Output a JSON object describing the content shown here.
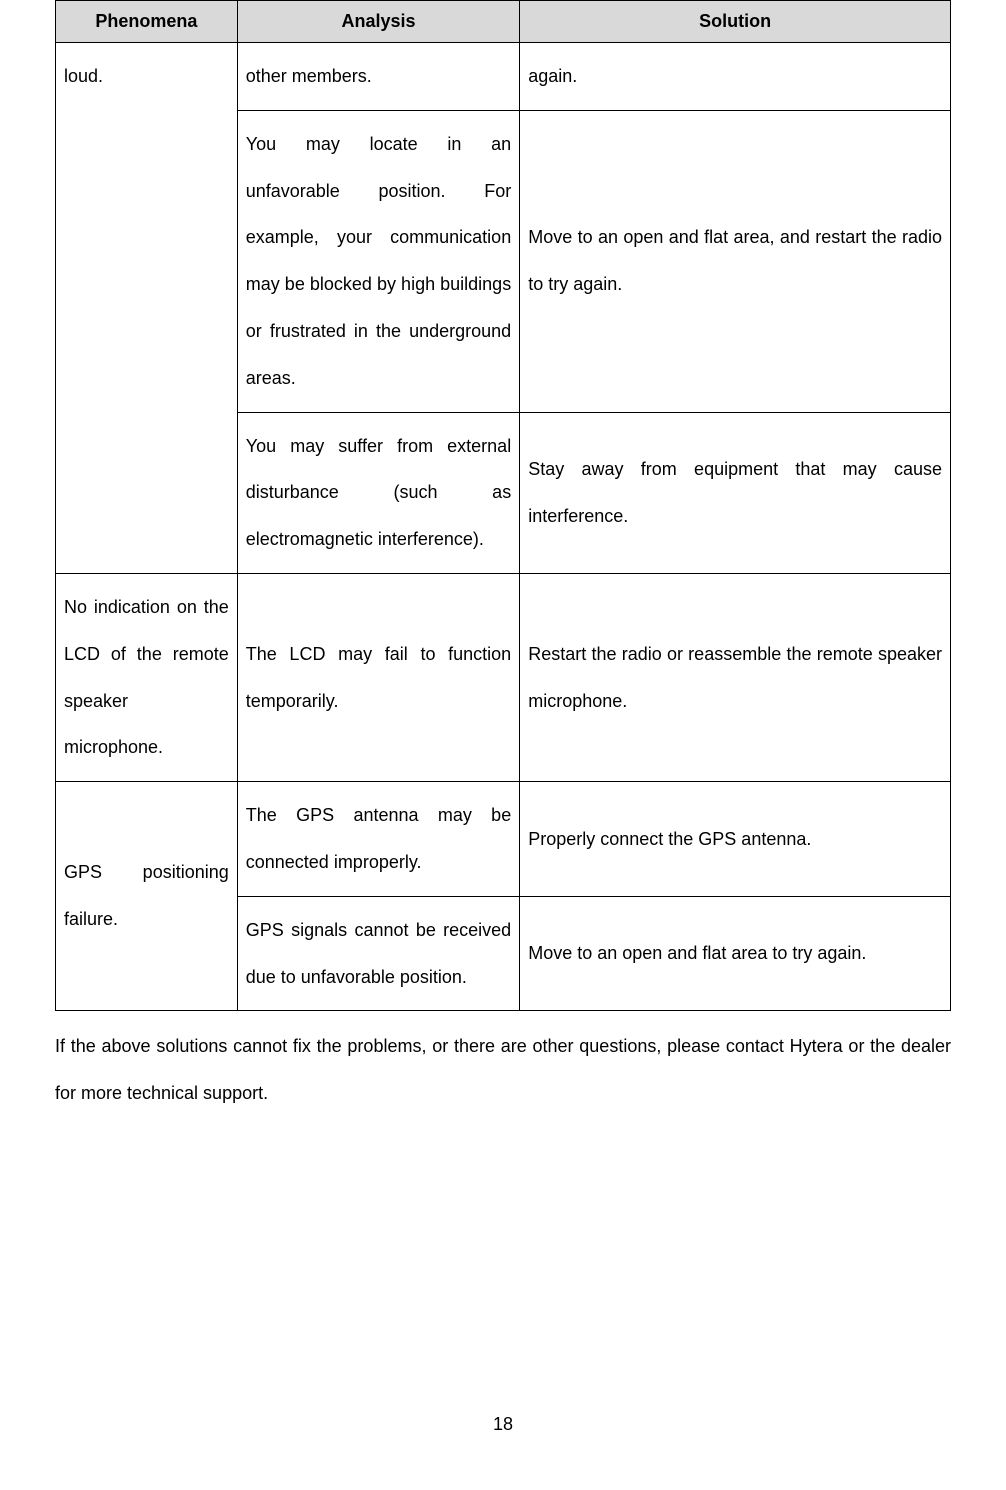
{
  "table": {
    "headers": {
      "phenomena": "Phenomena",
      "analysis": "Analysis",
      "solution": "Solution"
    },
    "rows": [
      {
        "phenomena": "loud.",
        "analysis": "other members.",
        "solution": "again."
      },
      {
        "analysis": "You may locate in an unfavorable position. For example, your communication may be blocked by high buildings or frustrated in the underground areas.",
        "solution": "Move to an open and flat area, and restart the radio to try again."
      },
      {
        "analysis": "You may suffer from external disturbance (such as electromagnetic interference).",
        "solution": "Stay away from equipment that may cause interference."
      },
      {
        "phenomena": "No indication on the LCD of the remote speaker microphone.",
        "analysis": "The LCD may fail to function temporarily.",
        "solution": "Restart the radio or reassemble the remote speaker microphone."
      },
      {
        "phenomena": "GPS positioning failure.",
        "analysis": "The GPS antenna may be connected improperly.",
        "solution": "Properly connect the GPS antenna."
      },
      {
        "analysis": "GPS signals cannot be received due to unfavorable position.",
        "solution": "Move to an open and flat area to try again."
      }
    ]
  },
  "footer_text": "If the above solutions cannot fix the problems, or there are other questions, please contact Hytera or the dealer for more technical support.",
  "page_number": "18",
  "styling": {
    "header_bg": "#d9d9d9",
    "border_color": "#000000",
    "font_size_pt": 18,
    "line_height": 2.6
  }
}
